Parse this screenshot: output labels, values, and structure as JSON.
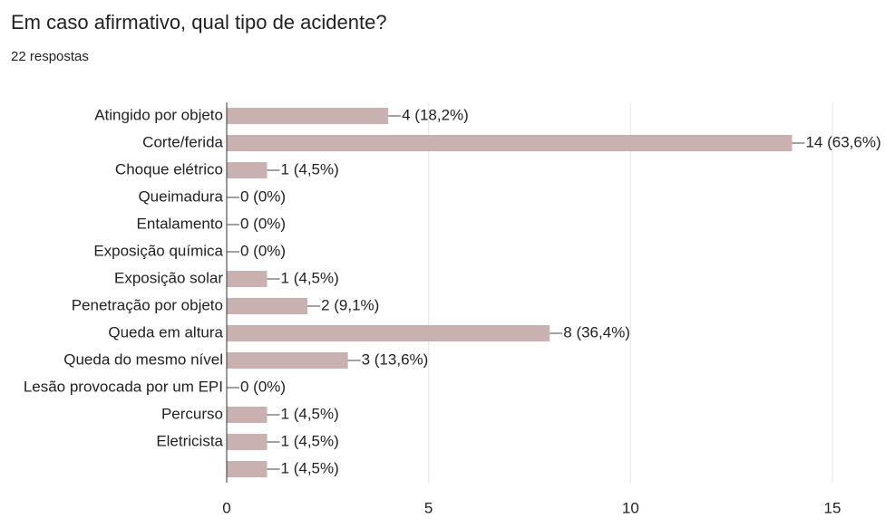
{
  "chart_data": {
    "type": "bar",
    "orientation": "horizontal",
    "title": "Em caso afirmativo, qual tipo de acidente?",
    "subtitle": "22 respostas",
    "categories": [
      "Atingido por objeto",
      "Corte/ferida",
      "Choque elétrico",
      "Queimadura",
      "Entalamento",
      "Exposição química",
      "Exposição solar",
      "Penetração por objeto",
      "Queda em altura",
      "Queda do mesmo nível",
      "Lesão provocada por um EPI",
      "Percurso",
      "Eletricista",
      null
    ],
    "values": [
      4,
      14,
      1,
      0,
      0,
      0,
      1,
      2,
      8,
      3,
      0,
      1,
      1,
      1
    ],
    "value_labels": [
      "4 (18,2%)",
      "14 (63,6%)",
      "1 (4,5%)",
      "0 (0%)",
      "0 (0%)",
      "0 (0%)",
      "1 (4,5%)",
      "2 (9,1%)",
      "8 (36,4%)",
      "3 (13,6%)",
      "0 (0%)",
      "1 (4,5%)",
      "1 (4,5%)",
      "1 (4,5%)"
    ],
    "color": "#c9b1b1",
    "xlim": [
      0,
      15
    ],
    "xticks": [
      0,
      5,
      10,
      15
    ],
    "grid": true
  }
}
